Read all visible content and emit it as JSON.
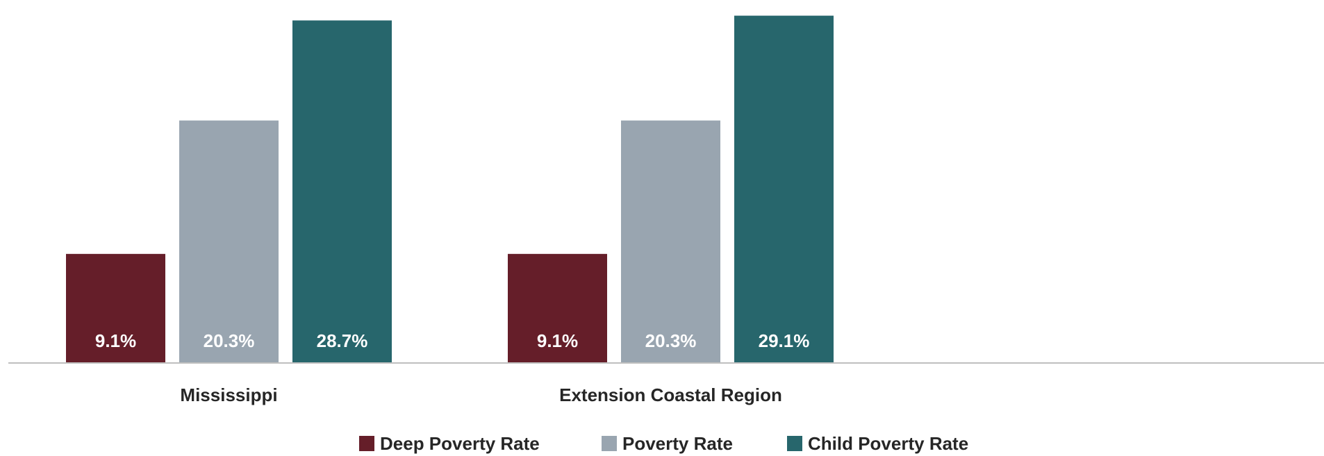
{
  "chart_data": {
    "type": "bar",
    "categories": [
      "Mississippi",
      "Extension Coastal Region"
    ],
    "series": [
      {
        "name": "Deep Poverty Rate",
        "color": "#651E29",
        "values": [
          9.1,
          9.1
        ],
        "labels": [
          "9.1%",
          "9.1%"
        ]
      },
      {
        "name": "Poverty Rate",
        "color": "#99A5B0",
        "values": [
          20.3,
          20.3
        ],
        "labels": [
          "20.3%",
          "20.3%"
        ]
      },
      {
        "name": "Child Poverty Rate",
        "color": "#27666C",
        "values": [
          28.7,
          29.1
        ],
        "labels": [
          "28.7%",
          "29.1%"
        ]
      }
    ],
    "ylim": [
      0,
      29.6
    ],
    "axis_color": "#BFBFBF",
    "grid": false,
    "legend_position": "bottom"
  }
}
